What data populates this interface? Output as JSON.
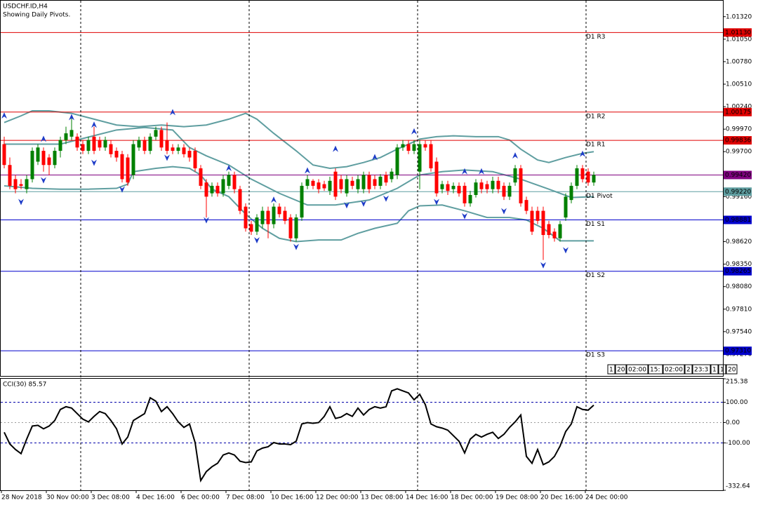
{
  "chart_data": [
    {
      "type": "candlestick",
      "title": "USDCHF.ID,H4",
      "subtitle": "Showing Daily Pivots.",
      "categories": [
        "28 Nov 2018",
        null,
        null,
        null,
        null,
        null,
        null,
        null,
        "30 Nov 00:00",
        null,
        null,
        null,
        null,
        null,
        null,
        null,
        "3 Dec 08:00",
        null,
        null,
        null,
        null,
        null,
        null,
        null,
        "4 Dec 16:00",
        null,
        null,
        null,
        null,
        null,
        null,
        null,
        "6 Dec 00:00",
        null,
        null,
        null,
        null,
        null,
        null,
        null,
        "7 Dec 08:00",
        null,
        null,
        null,
        null,
        null,
        null,
        null,
        "10 Dec 16:00",
        null,
        null,
        null,
        null,
        null,
        null,
        null,
        "12 Dec 00:00",
        null,
        null,
        null,
        null,
        null,
        null,
        null,
        "13 Dec 08:00",
        null,
        null,
        null,
        null,
        null,
        null,
        null,
        "14 Dec 16:00",
        null,
        null,
        null,
        null,
        null,
        null,
        null,
        "18 Dec 00:00",
        null,
        null,
        null,
        null,
        null,
        null,
        null,
        "19 Dec 08:00",
        null,
        null,
        null,
        null,
        null,
        null,
        null,
        "20 Dec 16:00",
        null,
        null,
        null,
        null,
        null,
        null,
        null,
        "24 Dec 00:00",
        null
      ],
      "open": [
        0.9979,
        0.9954,
        0.9937,
        0.9931,
        0.9925,
        0.9937,
        0.9958,
        0.9971,
        0.9963,
        0.9954,
        0.9971,
        0.9984,
        0.9988,
        0.9988,
        0.9979,
        0.9971,
        0.9988,
        0.9984,
        0.9975,
        0.9979,
        0.9971,
        0.9967,
        0.9963,
        0.9942,
        0.9975,
        0.9984,
        0.9971,
        0.9988,
        0.9996,
        0.9984,
        0.9975,
        0.9971,
        0.9975,
        0.9971,
        0.9971,
        0.995,
        0.9933,
        0.992,
        0.9929,
        0.992,
        0.9929,
        0.9942,
        0.9925,
        0.9904,
        0.9883,
        0.9874,
        0.9883,
        0.9899,
        0.9883,
        0.9904,
        0.9899,
        0.9891,
        0.9866,
        0.9891,
        0.9929,
        0.9935,
        0.9933,
        0.9931,
        0.9923,
        0.9946,
        0.9937,
        0.992,
        0.9935,
        0.9925,
        0.9925,
        0.9942,
        0.9937,
        0.9929,
        0.9942,
        0.9937,
        0.9942,
        0.9975,
        0.9979,
        0.9971,
        0.9946,
        0.9979,
        0.9979,
        0.9958,
        0.9925,
        0.9931,
        0.9925,
        0.9929,
        0.9929,
        0.9908,
        0.9918,
        0.9933,
        0.9931,
        0.9925,
        0.9935,
        0.9929,
        0.9916,
        0.9933,
        0.995,
        0.9912,
        0.9899,
        0.9899,
        0.9899,
        0.9883,
        0.9874,
        0.9866,
        0.9891,
        0.9912,
        0.9929,
        0.995,
        0.9946,
        0.9933
      ],
      "high": [
        0.9988,
        0.9963,
        0.9942,
        0.9937,
        0.9942,
        0.9975,
        0.9979,
        0.9975,
        0.9967,
        0.9975,
        0.9988,
        1.0,
        1.0013,
        0.9992,
        0.9984,
        0.9988,
        1.0,
        0.9988,
        0.9988,
        0.9984,
        0.9975,
        0.9971,
        0.9967,
        0.9984,
        0.9988,
        0.9988,
        0.9992,
        1.0,
        1.0,
        1.0005,
        0.9979,
        0.9979,
        0.9979,
        0.9975,
        0.9975,
        0.9954,
        0.9937,
        0.9933,
        0.9933,
        0.9942,
        0.9946,
        0.9946,
        0.9929,
        0.9908,
        0.9887,
        0.9895,
        0.9904,
        0.9904,
        0.9908,
        0.9908,
        0.9904,
        0.9895,
        0.9895,
        0.9933,
        0.9942,
        0.9937,
        0.9937,
        0.9935,
        0.994,
        0.995,
        0.9942,
        0.9942,
        0.994,
        0.9942,
        0.9946,
        0.9946,
        0.9942,
        0.9943,
        0.9946,
        0.995,
        0.9979,
        0.9984,
        0.9984,
        0.9984,
        0.9984,
        0.9984,
        0.9984,
        0.9963,
        0.9935,
        0.9935,
        0.9933,
        0.9933,
        0.9933,
        0.9923,
        0.9937,
        0.9937,
        0.9935,
        0.994,
        0.994,
        0.9933,
        0.9933,
        0.9954,
        0.9954,
        0.9916,
        0.9904,
        0.9904,
        0.9904,
        0.9887,
        0.9878,
        0.9887,
        0.992,
        0.9933,
        0.9954,
        0.9954,
        0.995,
        0.9946
      ],
      "low": [
        0.995,
        0.9925,
        0.992,
        0.9925,
        0.992,
        0.9933,
        0.9954,
        0.9946,
        0.9942,
        0.995,
        0.9963,
        0.9979,
        0.9984,
        0.9971,
        0.9967,
        0.9967,
        0.9967,
        0.9971,
        0.9971,
        0.9963,
        0.9958,
        0.9933,
        0.9929,
        0.9937,
        0.9971,
        0.9967,
        0.9967,
        0.9984,
        0.9971,
        0.9967,
        0.9967,
        0.9967,
        0.9963,
        0.9958,
        0.9946,
        0.9925,
        0.9891,
        0.9916,
        0.9916,
        0.9916,
        0.9925,
        0.992,
        0.9895,
        0.9874,
        0.987,
        0.987,
        0.9878,
        0.9866,
        0.9878,
        0.9891,
        0.9883,
        0.9862,
        0.9862,
        0.9887,
        0.9925,
        0.9925,
        0.992,
        0.9923,
        0.9918,
        0.9912,
        0.992,
        0.9916,
        0.9925,
        0.992,
        0.992,
        0.992,
        0.9925,
        0.9925,
        0.9929,
        0.9933,
        0.9937,
        0.9971,
        0.9967,
        0.9967,
        0.9925,
        0.9971,
        0.9946,
        0.9916,
        0.992,
        0.9918,
        0.992,
        0.9916,
        0.9904,
        0.9904,
        0.9915,
        0.992,
        0.992,
        0.992,
        0.992,
        0.9912,
        0.9912,
        0.9929,
        0.9904,
        0.9895,
        0.987,
        0.9883,
        0.984,
        0.9866,
        0.9862,
        0.9862,
        0.9887,
        0.9908,
        0.9925,
        0.9933,
        0.9929,
        0.9929
      ],
      "close": [
        0.9954,
        0.9929,
        0.9925,
        0.9929,
        0.9937,
        0.9971,
        0.9975,
        0.9954,
        0.9954,
        0.9971,
        0.9984,
        0.9992,
        0.9996,
        0.9975,
        0.9971,
        0.9984,
        0.9971,
        0.9975,
        0.9984,
        0.9967,
        0.9963,
        0.9937,
        0.9933,
        0.9979,
        0.9984,
        0.9971,
        0.9988,
        0.9996,
        0.9975,
        0.9971,
        0.9971,
        0.9975,
        0.9967,
        0.9963,
        0.995,
        0.9929,
        0.9916,
        0.9929,
        0.992,
        0.9937,
        0.9942,
        0.9925,
        0.9899,
        0.9878,
        0.9874,
        0.9891,
        0.9899,
        0.9883,
        0.9904,
        0.9895,
        0.9887,
        0.9866,
        0.9891,
        0.9929,
        0.9937,
        0.9929,
        0.9925,
        0.9926,
        0.9935,
        0.9916,
        0.9925,
        0.9937,
        0.9929,
        0.9937,
        0.9942,
        0.9925,
        0.9929,
        0.994,
        0.9933,
        0.9946,
        0.9975,
        0.9979,
        0.9971,
        0.9979,
        0.9979,
        0.9975,
        0.995,
        0.992,
        0.9931,
        0.9923,
        0.9929,
        0.992,
        0.9908,
        0.9918,
        0.9933,
        0.9925,
        0.9925,
        0.9935,
        0.9925,
        0.9916,
        0.9929,
        0.995,
        0.9908,
        0.9899,
        0.9874,
        0.9887,
        0.987,
        0.987,
        0.9866,
        0.9883,
        0.9916,
        0.9929,
        0.995,
        0.9937,
        0.9933,
        0.9942
      ],
      "up_color": "#008000",
      "down_color": "#ff0000",
      "bands": {
        "color": "#5f9ea0",
        "upper": {
          "x": [
            0,
            3,
            5,
            8,
            12,
            16,
            20,
            24,
            28,
            32,
            36,
            40,
            43,
            45,
            48,
            52,
            55,
            58,
            61,
            64,
            67,
            70,
            72,
            74,
            77,
            80,
            84,
            88,
            90,
            92,
            95,
            97,
            100,
            103,
            105
          ],
          "values": [
            1.0005,
            1.0013,
            1.0019,
            1.0019,
            1.0016,
            1.0009,
            1.0002,
            1.0,
            1.0002,
            1.0,
            1.0002,
            1.0009,
            1.0016,
            1.0009,
            0.9992,
            0.9971,
            0.9954,
            0.995,
            0.9952,
            0.9957,
            0.9963,
            0.9973,
            0.9979,
            0.9985,
            0.9988,
            0.9989,
            0.9988,
            0.9988,
            0.9984,
            0.9973,
            0.996,
            0.9957,
            0.9963,
            0.9968,
            0.997
          ]
        },
        "middle": {
          "x": [
            0,
            10,
            20,
            25,
            30,
            33,
            36,
            40,
            44,
            49,
            54,
            59,
            65,
            70,
            74,
            78,
            82,
            87,
            92,
            97,
            101,
            105
          ],
          "values": [
            0.9979,
            0.9979,
            0.9996,
            0.9999,
            0.9996,
            0.9975,
            0.9965,
            0.9954,
            0.9937,
            0.992,
            0.9906,
            0.9906,
            0.9912,
            0.9926,
            0.9942,
            0.9946,
            0.9948,
            0.9946,
            0.9937,
            0.9925,
            0.9915,
            0.9916
          ]
        },
        "lower": {
          "x": [
            0,
            5,
            10,
            15,
            20,
            22,
            23,
            27,
            30,
            33,
            35,
            37,
            40,
            43,
            46,
            49,
            52,
            56,
            60,
            63,
            66,
            70,
            72,
            74,
            78,
            82,
            86,
            90,
            93,
            96,
            99,
            105
          ],
          "values": [
            0.9929,
            0.9926,
            0.9925,
            0.9925,
            0.9926,
            0.9931,
            0.9946,
            0.995,
            0.9952,
            0.995,
            0.9942,
            0.9925,
            0.9916,
            0.9895,
            0.9878,
            0.9866,
            0.9862,
            0.9864,
            0.9864,
            0.9872,
            0.9878,
            0.9884,
            0.9899,
            0.9905,
            0.9906,
            0.9899,
            0.9891,
            0.9891,
            0.9888,
            0.9878,
            0.9863,
            0.9863
          ]
        }
      },
      "fractals": {
        "color": "#1e3cc8",
        "up": {
          "x": [
            0,
            7,
            12,
            16,
            30,
            40,
            48,
            54,
            59,
            66,
            73,
            82,
            85,
            91,
            103
          ],
          "values": [
            1.0013,
            0.9985,
            1.0011,
            1.0002,
            1.0017,
            0.995,
            0.9912,
            0.9947,
            0.9973,
            0.9963,
            0.9994,
            0.9946,
            0.9946,
            0.9965,
            0.9967
          ]
        },
        "down": {
          "x": [
            3,
            7,
            16,
            21,
            29,
            36,
            45,
            52,
            61,
            64,
            68,
            77,
            82,
            89,
            96,
            100
          ],
          "values": [
            0.991,
            0.9936,
            0.9957,
            0.9925,
            0.9963,
            0.9888,
            0.9864,
            0.9856,
            0.9906,
            0.9908,
            0.9914,
            0.991,
            0.9893,
            0.9899,
            0.9834,
            0.9852
          ]
        }
      },
      "levels": [
        {
          "name": "D1 R3",
          "value": 1.0113,
          "label": "1.01130",
          "color": "#e00000"
        },
        {
          "name": "D1 R2",
          "value": 1.00175,
          "label": "1.00175",
          "color": "#e00000"
        },
        {
          "name": "D1 R1",
          "value": 0.99836,
          "label": "0.99836",
          "color": "#e00000"
        },
        {
          "name": "D1 Pivot",
          "value": 0.9922,
          "label": "0.99220",
          "color": "#5f9ea0"
        },
        {
          "name": "D1 S1",
          "value": 0.98881,
          "label": "0.98881",
          "color": "#0000cc"
        },
        {
          "name": "D1 S2",
          "value": 0.98265,
          "label": "0.98265",
          "color": "#0000cc"
        },
        {
          "name": "D1 S3",
          "value": 0.9731,
          "label": "0.97310",
          "color": "#0000cc"
        }
      ],
      "current_price": {
        "value": 0.9942,
        "label": "0.99420",
        "color": "#800080"
      },
      "ylim": [
        0.97,
        1.0152
      ],
      "yticks": [
        {
          "value": 1.0132,
          "label": "1.01320"
        },
        {
          "value": 1.0105,
          "label": "1.01050"
        },
        {
          "value": 1.0078,
          "label": "1.00780"
        },
        {
          "value": 1.0051,
          "label": "1.00510"
        },
        {
          "value": 1.0024,
          "label": "1.00240"
        },
        {
          "value": 0.9997,
          "label": "0.99970"
        },
        {
          "value": 0.997,
          "label": "0.99700"
        },
        {
          "value": 0.9916,
          "label": "0.99160"
        },
        {
          "value": 0.9862,
          "label": "0.98620"
        },
        {
          "value": 0.9835,
          "label": "0.98350"
        },
        {
          "value": 0.9808,
          "label": "0.98080"
        },
        {
          "value": 0.9781,
          "label": "0.97810"
        },
        {
          "value": 0.9754,
          "label": "0.97540"
        },
        {
          "value": 0.9727,
          "label": "0.97270"
        }
      ],
      "scale_buttons": [
        "1",
        "20",
        "02:00",
        "15:",
        "02:00",
        "2",
        "23:3",
        "1",
        "1",
        "20"
      ]
    },
    {
      "type": "line",
      "title": "CCI(30) 85.57",
      "color": "#000000",
      "level_color": "#0000aa",
      "values": [
        -47.5,
        -105.1,
        -132.2,
        -152.6,
        -81.4,
        -17,
        -13.6,
        -30.5,
        -17,
        10.2,
        64.4,
        78,
        71.2,
        44.1,
        17,
        3.4,
        30.5,
        54.2,
        44.1,
        10.2,
        -30.5,
        -105.1,
        -71.2,
        10.2,
        27.1,
        44.1,
        122,
        105.1,
        54.2,
        78,
        44.1,
        3.4,
        -23.7,
        -6.8,
        -98.3,
        -284.8,
        -240.7,
        -217,
        -200,
        -159.3,
        -149.2,
        -159.3,
        -189.8,
        -196.6,
        -193.2,
        -139,
        -125.4,
        -118.7,
        -98.3,
        -105.1,
        -105.1,
        -108.5,
        -91.5,
        -6.8,
        0,
        -3.4,
        0,
        30.5,
        78,
        20.3,
        27.1,
        44.1,
        30.5,
        71.2,
        37.3,
        64.4,
        78,
        71.2,
        78,
        155.9,
        166.1,
        155.9,
        145.8,
        111.9,
        139,
        88.1,
        -6.8,
        -20.3,
        -27.1,
        -37.3,
        -64.4,
        -91.5,
        -149.2,
        -81.4,
        -57.6,
        -71.2,
        -57.6,
        -47.5,
        -78,
        -57.6,
        -23.7,
        3.4,
        37.3,
        -166.1,
        -200,
        -132.2,
        -206.8,
        -193.2,
        -166.1,
        -115.3,
        -44.1,
        -6.8,
        78,
        64.4,
        61,
        85.57
      ],
      "ylim": [
        -332.64,
        215.38
      ],
      "yticks": [
        215.38,
        {
          "value": 100,
          "label": "100.00"
        },
        {
          "value": 0,
          "label": "0.00"
        },
        {
          "value": -100,
          "label": "-100.00"
        },
        -332.64
      ]
    }
  ]
}
